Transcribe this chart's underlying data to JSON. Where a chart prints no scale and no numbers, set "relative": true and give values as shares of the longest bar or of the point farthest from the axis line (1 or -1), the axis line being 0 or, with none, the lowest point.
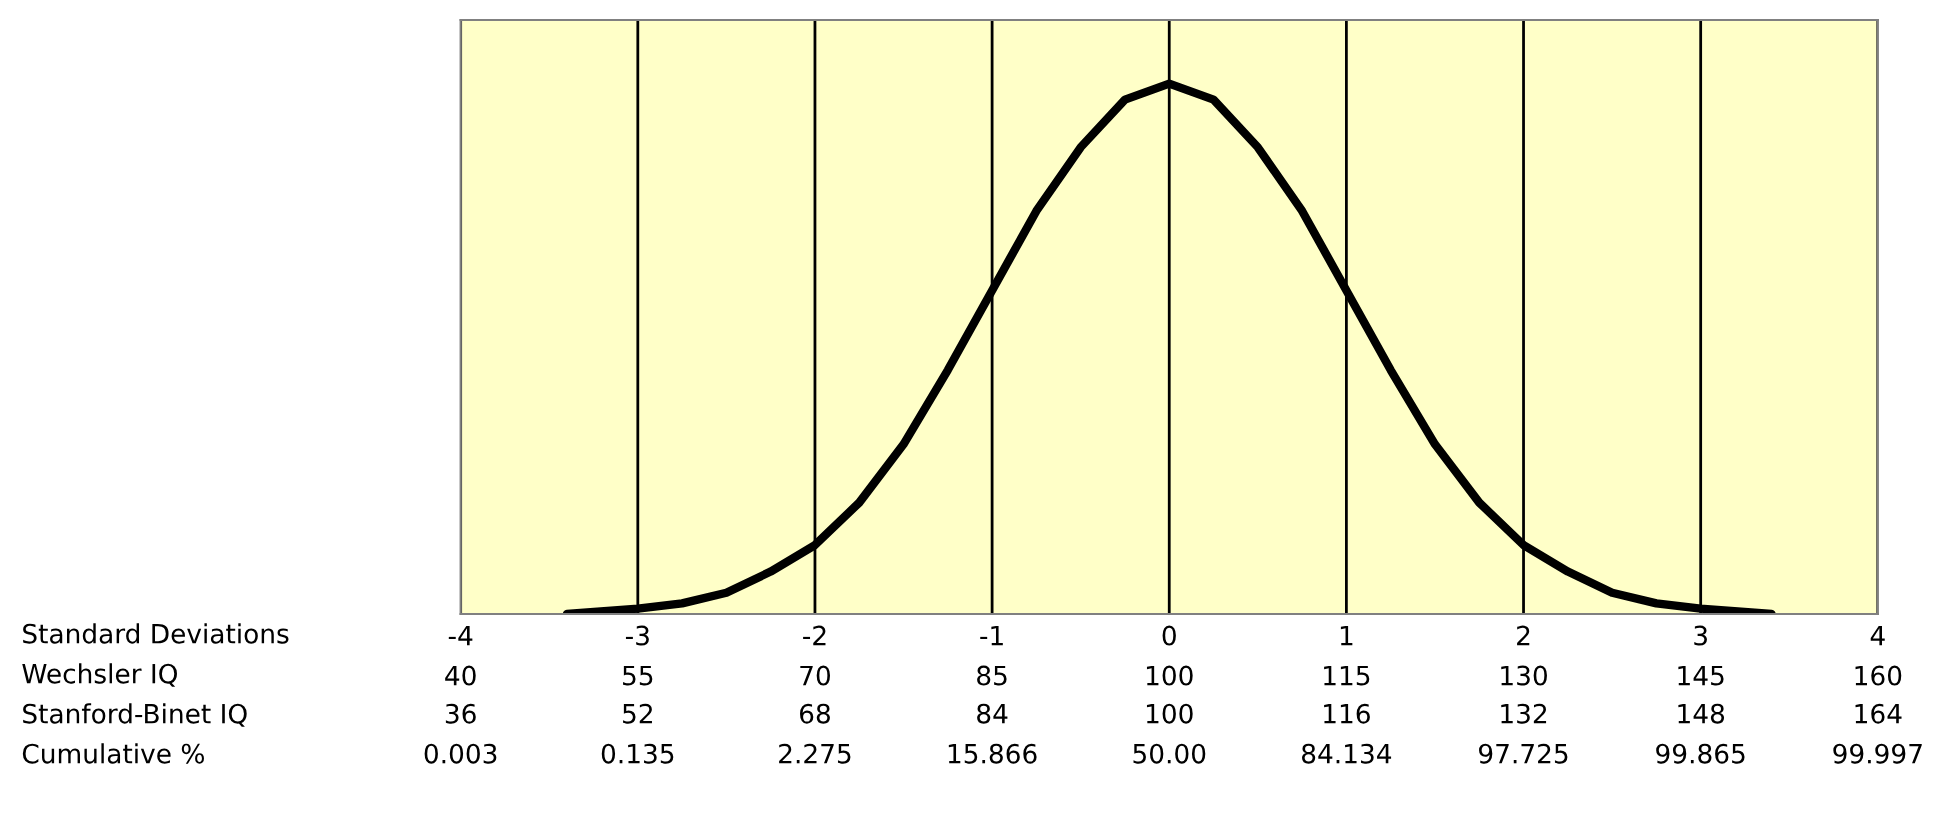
{
  "chart_data": {
    "type": "line",
    "relative": true,
    "x": [
      -3.4,
      -3,
      -2.75,
      -2.5,
      -2.25,
      -2,
      -1.75,
      -1.5,
      -1.25,
      -1,
      -0.75,
      -0.5,
      -0.25,
      0,
      0.25,
      0.5,
      0.75,
      1,
      1.25,
      1.5,
      1.75,
      2,
      2.25,
      2.5,
      2.75,
      3,
      3.4
    ],
    "series": [
      {
        "color": "#000000",
        "values": [
          0,
          0.01,
          0.02,
          0.04,
          0.08,
          0.13,
          0.21,
          0.32,
          0.46,
          0.61,
          0.76,
          0.88,
          0.97,
          1,
          0.97,
          0.88,
          0.76,
          0.61,
          0.46,
          0.32,
          0.21,
          0.13,
          0.08,
          0.04,
          0.02,
          0.01,
          0
        ]
      }
    ],
    "xlim": [
      -4,
      4
    ],
    "xticks": [
      -4,
      -3,
      -2,
      -1,
      0,
      1,
      2,
      3,
      4
    ],
    "x2lim": [
      40,
      160
    ],
    "x2ticks": [
      40,
      55,
      70,
      85,
      100,
      115,
      130,
      145,
      160
    ],
    "annotations": [
      "Standard Deviations",
      "Wechsler IQ",
      "Stanford-Binet IQ",
      "36",
      "52",
      "68",
      "84",
      "100",
      "116",
      "132",
      "148",
      "164",
      "Cumulative %",
      "0.003",
      "0.135",
      "2.275",
      "15.866",
      "50.00",
      "84.134",
      "97.725",
      "99.865",
      "99.997"
    ],
    "grid": "x",
    "tick_labels": "x",
    "marker": "none",
    "line_style": "solid"
  }
}
